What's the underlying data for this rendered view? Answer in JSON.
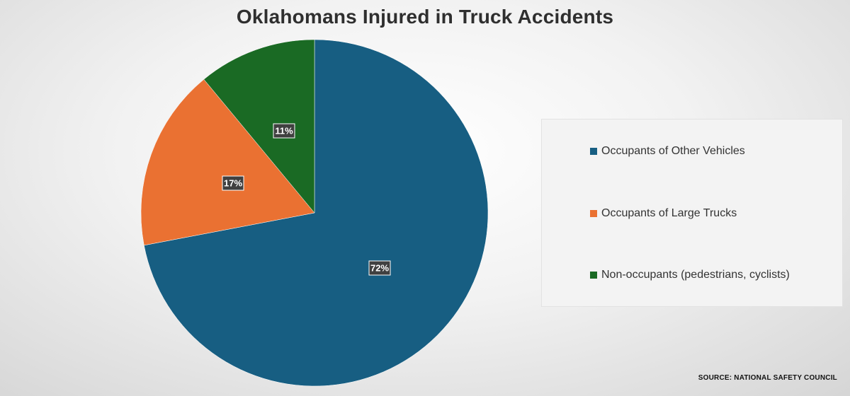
{
  "chart_data": {
    "type": "pie",
    "title": "Oklahomans Injured in Truck Accidents",
    "categories": [
      "Occupants of Other Vehicles",
      "Occupants of Large Trucks",
      "Non-occupants (pedestrians, cyclists)"
    ],
    "values": [
      72,
      17,
      11
    ],
    "data_labels": [
      "72%",
      "17%",
      "11%"
    ],
    "colors": [
      "#175e82",
      "#ea7132",
      "#1a6a24"
    ],
    "legend_position": "right",
    "grid": false
  },
  "source": "SOURCE: NATIONAL SAFETY COUNCIL"
}
